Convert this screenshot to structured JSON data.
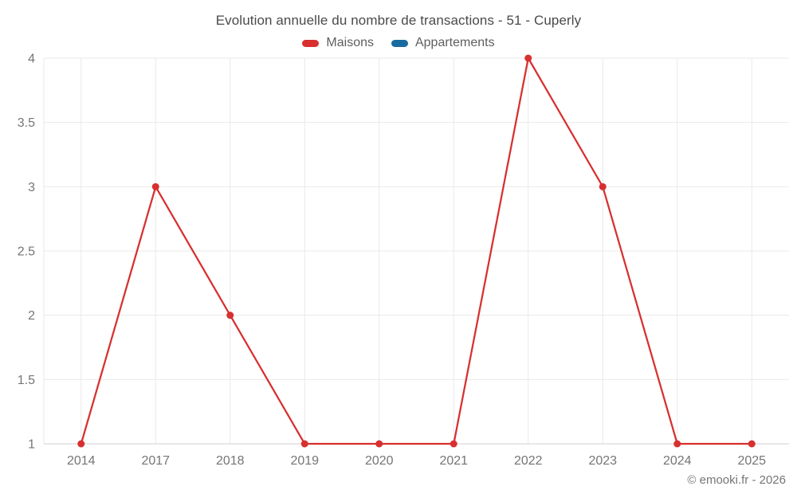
{
  "chart_data": {
    "type": "line",
    "title": "Evolution annuelle du nombre de transactions - 51 - Cuperly",
    "categories": [
      "2014",
      "2017",
      "2018",
      "2019",
      "2020",
      "2021",
      "2022",
      "2023",
      "2024",
      "2025"
    ],
    "series": [
      {
        "name": "Maisons",
        "color": "#d7302f",
        "values": [
          1,
          3,
          2,
          1,
          1,
          1,
          4,
          3,
          1,
          1
        ]
      },
      {
        "name": "Appartements",
        "color": "#176ba0",
        "values": []
      }
    ],
    "xlabel": "",
    "ylabel": "",
    "ylim": [
      1,
      4
    ],
    "yticks": [
      1,
      1.5,
      2,
      2.5,
      3,
      3.5,
      4
    ],
    "grid": true,
    "legend_position": "top",
    "watermark": "© emooki.fr - 2026"
  },
  "colors": {
    "maisons": "#d7302f",
    "appartements": "#176ba0",
    "gridline": "#e9e9e9",
    "axis_line": "#cfcfcf",
    "tick_text": "#757575"
  }
}
